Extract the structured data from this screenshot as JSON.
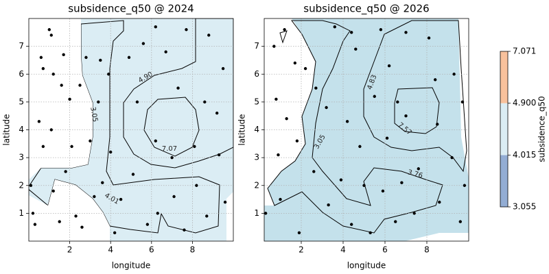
{
  "chart_data": [
    {
      "type": "contour-scatter",
      "title": "subsidence_q50 @ 2024",
      "x_label": "longitude",
      "y_label": "latitude",
      "xlim": [
        0,
        10
      ],
      "ylim": [
        0,
        8
      ],
      "xticks": [
        2,
        4,
        6,
        8
      ],
      "yticks": [
        1,
        2,
        3,
        4,
        5,
        6,
        7
      ],
      "grid": true,
      "level_colors": [
        "#93add4",
        "#dbedf4",
        "#f8c19c"
      ],
      "point_color": "#000000",
      "contour_labels": [
        "4.90",
        "3.05",
        "7.07",
        "4.01"
      ],
      "x": [
        1.0,
        1.1,
        0.6,
        0.7,
        1.2,
        1.6,
        2.0,
        0.5,
        1.1,
        0.7,
        0.1,
        1.2,
        1.8,
        0.2,
        0.3,
        1.5,
        2.3,
        2.5,
        2.8,
        3.5,
        3.4,
        3.9,
        3.6,
        3.2,
        2.6,
        4.0,
        4.2,
        4.5,
        5.1,
        5.3,
        5.6,
        6.2,
        6.7,
        7.7,
        8.8,
        9.5,
        8.6,
        7.3,
        6.2,
        7.0,
        8.1,
        9.3,
        8.2,
        7.1,
        6.3,
        7.6,
        8.7,
        9.6,
        5.8,
        3.0,
        4.9,
        9.2,
        2.1,
        1.7
      ],
      "y": [
        7.6,
        7.4,
        6.6,
        6.2,
        6.0,
        5.6,
        5.1,
        4.3,
        4.0,
        3.4,
        2.0,
        1.8,
        2.5,
        1.0,
        0.6,
        0.7,
        0.9,
        5.6,
        6.6,
        6.5,
        5.0,
        6.0,
        2.1,
        1.6,
        0.5,
        3.2,
        0.3,
        1.5,
        2.4,
        5.0,
        7.1,
        7.7,
        6.8,
        7.6,
        7.4,
        6.2,
        5.0,
        5.5,
        3.6,
        3.0,
        3.4,
        3.1,
        2.0,
        1.6,
        1.0,
        0.4,
        0.9,
        1.4,
        0.6,
        3.6,
        6.6,
        4.6,
        3.4,
        6.7
      ]
    },
    {
      "type": "contour-scatter",
      "title": "subsidence_q50 @ 2026",
      "x_label": "longitude",
      "y_label": "latitude",
      "xlim": [
        0.23,
        10
      ],
      "ylim": [
        0,
        8
      ],
      "xticks": [
        2,
        4,
        6,
        8
      ],
      "yticks": [
        1,
        2,
        3,
        4,
        5,
        6,
        7
      ],
      "grid": true,
      "level_colors": [
        "#8da4cf",
        "#c4e1eb",
        "#fbcb9f"
      ],
      "point_color": "#000000",
      "contour_labels": [
        "4.83",
        "3.05",
        "7.57",
        "3.76"
      ],
      "x": [
        1.2,
        0.7,
        1.7,
        0.8,
        1.3,
        1.8,
        0.3,
        1.0,
        1.9,
        2.2,
        3.2,
        3.6,
        2.6,
        3.3,
        4.4,
        4.8,
        5.0,
        5.9,
        6.5,
        7.4,
        8.6,
        9.6,
        9.2,
        8.5,
        7.0,
        6.1,
        5.5,
        6.2,
        7.0,
        8.1,
        9.3,
        9.7,
        8.4,
        4.6,
        5.8,
        2.7,
        4.2,
        7.6,
        6.8,
        3.9,
        5.3,
        0.9,
        9.8,
        6.6,
        4.4
      ],
      "y": [
        7.6,
        7.0,
        6.4,
        5.1,
        4.4,
        3.6,
        1.0,
        1.5,
        0.3,
        6.2,
        4.8,
        7.7,
        2.5,
        1.3,
        0.6,
        3.4,
        2.0,
        1.8,
        0.7,
        1.0,
        1.4,
        0.7,
        3.0,
        4.2,
        4.5,
        3.7,
        5.2,
        6.3,
        7.5,
        7.3,
        6.0,
        5.0,
        5.8,
        6.9,
        7.6,
        5.5,
        4.3,
        2.6,
        2.1,
        2.2,
        0.3,
        3.1,
        2.0,
        5.0,
        7.5
      ]
    }
  ],
  "colorbar": {
    "label": "subsidence_q50",
    "colors": [
      "#93add4",
      "#dbedf4",
      "#f8c19c"
    ],
    "ticks": [
      3.055,
      4.015,
      {
        "value": 4.9,
        "label": "4.900"
      },
      7.071
    ]
  }
}
